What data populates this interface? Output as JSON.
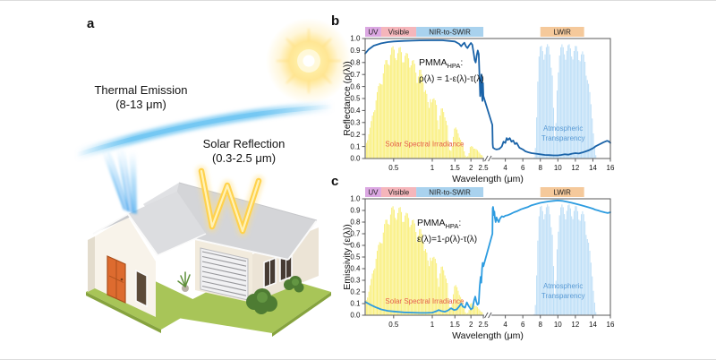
{
  "panel_a": {
    "label": "a",
    "thermal_emission": {
      "line1": "Thermal Emission",
      "line2": "(8-13 μm)"
    },
    "solar_reflection": {
      "line1": "Solar Reflection",
      "line2": "(0.3-2.5 μm)"
    },
    "colors": {
      "beam_blue": "#55b4f0",
      "ray_yellow": "#ffd24d",
      "door_orange": "#dd6b2f",
      "roof_gray": "#d4d5d8",
      "lawn_green": "#a8c558",
      "sky_arc_blue": "#6cc4f2"
    }
  },
  "chart_data": {
    "type": "line",
    "xlabel": "Wavelength (μm)",
    "x_axis": {
      "scale": "broken",
      "left": {
        "range": [
          0.3,
          2.5
        ],
        "scale": "log",
        "ticks": [
          0.5,
          1,
          1.5,
          2,
          2.5
        ]
      },
      "right": {
        "range": [
          2.5,
          16
        ],
        "scale": "linear",
        "ticks": [
          4,
          6,
          8,
          10,
          12,
          14,
          16
        ]
      }
    },
    "y_axis": {
      "range": [
        0,
        1
      ],
      "tick_step": 0.1
    },
    "bands": [
      {
        "label": "UV",
        "range": [
          0.3,
          0.4
        ],
        "color": "#dba7e2"
      },
      {
        "label": "Visible",
        "range": [
          0.4,
          0.75
        ],
        "color": "#f5b6bb"
      },
      {
        "label": "NIR-to-SWIR",
        "range": [
          0.75,
          2.5
        ],
        "color": "#a9d2ee"
      },
      {
        "label": "LWIR",
        "range": [
          8,
          13
        ],
        "color": "#f5c99b"
      }
    ],
    "fills": [
      {
        "name": "solar-spectral-irradiance",
        "label_lines": [
          "Solar Spectral Irradiance"
        ],
        "color": "#f9ef7e",
        "label_color": "#e4604a",
        "label_at": {
          "x": 0.43,
          "y": 0.1
        },
        "anchor": "start",
        "points": [
          [
            0.3,
            0.1
          ],
          [
            0.33,
            0.28
          ],
          [
            0.36,
            0.5
          ],
          [
            0.39,
            0.65
          ],
          [
            0.42,
            0.78
          ],
          [
            0.45,
            0.87
          ],
          [
            0.48,
            0.93
          ],
          [
            0.51,
            0.95
          ],
          [
            0.54,
            0.92
          ],
          [
            0.57,
            0.94
          ],
          [
            0.6,
            0.9
          ],
          [
            0.63,
            0.88
          ],
          [
            0.66,
            0.89
          ],
          [
            0.7,
            0.84
          ],
          [
            0.73,
            0.8
          ],
          [
            0.76,
            0.74
          ],
          [
            0.8,
            0.76
          ],
          [
            0.84,
            0.7
          ],
          [
            0.88,
            0.64
          ],
          [
            0.92,
            0.5
          ],
          [
            0.94,
            0.4
          ],
          [
            0.97,
            0.56
          ],
          [
            1.0,
            0.54
          ],
          [
            1.04,
            0.5
          ],
          [
            1.08,
            0.46
          ],
          [
            1.12,
            0.26
          ],
          [
            1.16,
            0.42
          ],
          [
            1.2,
            0.42
          ],
          [
            1.25,
            0.39
          ],
          [
            1.3,
            0.34
          ],
          [
            1.34,
            0.14
          ],
          [
            1.38,
            0.04
          ],
          [
            1.43,
            0.12
          ],
          [
            1.48,
            0.26
          ],
          [
            1.53,
            0.26
          ],
          [
            1.58,
            0.23
          ],
          [
            1.63,
            0.2
          ],
          [
            1.68,
            0.16
          ],
          [
            1.74,
            0.1
          ],
          [
            1.8,
            0.03
          ],
          [
            1.87,
            0.01
          ],
          [
            1.93,
            0.04
          ],
          [
            1.98,
            0.1
          ],
          [
            2.04,
            0.11
          ],
          [
            2.1,
            0.1
          ],
          [
            2.17,
            0.085
          ],
          [
            2.25,
            0.07
          ],
          [
            2.33,
            0.05
          ],
          [
            2.41,
            0.035
          ],
          [
            2.5,
            0.02
          ]
        ]
      },
      {
        "name": "atmospheric-transparency",
        "label_lines": [
          "Atmospheric",
          "Transparency"
        ],
        "color": "#bedff7",
        "label_color": "#5b9bd5",
        "label_at": {
          "x": 10.6,
          "y": 0.23
        },
        "anchor": "middle",
        "points": [
          [
            7.3,
            0.01
          ],
          [
            7.45,
            0.1
          ],
          [
            7.6,
            0.45
          ],
          [
            7.75,
            0.8
          ],
          [
            7.9,
            0.92
          ],
          [
            8.1,
            0.95
          ],
          [
            8.4,
            0.96
          ],
          [
            8.7,
            0.955
          ],
          [
            9.0,
            0.95
          ],
          [
            9.2,
            0.92
          ],
          [
            9.35,
            0.8
          ],
          [
            9.5,
            0.45
          ],
          [
            9.62,
            0.18
          ],
          [
            9.72,
            0.16
          ],
          [
            9.85,
            0.45
          ],
          [
            10.0,
            0.8
          ],
          [
            10.15,
            0.92
          ],
          [
            10.4,
            0.95
          ],
          [
            10.8,
            0.96
          ],
          [
            11.2,
            0.955
          ],
          [
            11.6,
            0.95
          ],
          [
            12.0,
            0.945
          ],
          [
            12.4,
            0.93
          ],
          [
            12.8,
            0.9
          ],
          [
            13.1,
            0.85
          ],
          [
            13.4,
            0.72
          ],
          [
            13.7,
            0.52
          ],
          [
            14.0,
            0.3
          ],
          [
            14.2,
            0.12
          ],
          [
            14.35,
            0.02
          ]
        ]
      }
    ],
    "panels": [
      {
        "id": "b",
        "label": "b",
        "ylabel": "Reflectance (ρ(λ))",
        "annotation": {
          "name": "PMMA",
          "sub": "HPA",
          "suffix": ":",
          "formula": "ρ(λ) = 1-ε(λ)-τ(λ)"
        },
        "color": "#1a63a8",
        "points": [
          [
            0.3,
            0.875
          ],
          [
            0.32,
            0.91
          ],
          [
            0.35,
            0.94
          ],
          [
            0.4,
            0.96
          ],
          [
            0.45,
            0.97
          ],
          [
            0.5,
            0.975
          ],
          [
            0.6,
            0.98
          ],
          [
            0.7,
            0.982
          ],
          [
            0.8,
            0.984
          ],
          [
            1.0,
            0.985
          ],
          [
            1.2,
            0.985
          ],
          [
            1.35,
            0.98
          ],
          [
            1.5,
            0.975
          ],
          [
            1.62,
            0.955
          ],
          [
            1.68,
            0.935
          ],
          [
            1.72,
            0.95
          ],
          [
            1.78,
            0.965
          ],
          [
            1.83,
            0.935
          ],
          [
            1.88,
            0.92
          ],
          [
            1.93,
            0.94
          ],
          [
            2.0,
            0.963
          ],
          [
            2.05,
            0.948
          ],
          [
            2.1,
            0.88
          ],
          [
            2.14,
            0.82
          ],
          [
            2.18,
            0.8
          ],
          [
            2.22,
            0.86
          ],
          [
            2.26,
            0.9
          ],
          [
            2.3,
            0.87
          ],
          [
            2.33,
            0.7
          ],
          [
            2.36,
            0.52
          ],
          [
            2.39,
            0.63
          ],
          [
            2.42,
            0.7
          ],
          [
            2.44,
            0.52
          ],
          [
            2.46,
            0.48
          ],
          [
            2.48,
            0.63
          ],
          [
            2.5,
            0.52
          ],
          [
            2.52,
            0.28
          ],
          [
            2.56,
            0.12
          ],
          [
            2.6,
            0.09
          ],
          [
            2.8,
            0.08
          ],
          [
            3.0,
            0.075
          ],
          [
            3.3,
            0.08
          ],
          [
            3.6,
            0.1
          ],
          [
            3.8,
            0.14
          ],
          [
            4.0,
            0.13
          ],
          [
            4.15,
            0.17
          ],
          [
            4.3,
            0.155
          ],
          [
            4.5,
            0.17
          ],
          [
            4.7,
            0.14
          ],
          [
            4.9,
            0.15
          ],
          [
            5.1,
            0.12
          ],
          [
            5.3,
            0.13
          ],
          [
            5.6,
            0.09
          ],
          [
            6.0,
            0.075
          ],
          [
            6.3,
            0.06
          ],
          [
            6.7,
            0.05
          ],
          [
            7.0,
            0.045
          ],
          [
            7.5,
            0.04
          ],
          [
            8.0,
            0.035
          ],
          [
            8.5,
            0.03
          ],
          [
            9.0,
            0.028
          ],
          [
            9.5,
            0.026
          ],
          [
            10.0,
            0.026
          ],
          [
            10.4,
            0.03
          ],
          [
            10.8,
            0.035
          ],
          [
            11.2,
            0.032
          ],
          [
            11.6,
            0.04
          ],
          [
            12.0,
            0.045
          ],
          [
            12.4,
            0.042
          ],
          [
            12.8,
            0.05
          ],
          [
            13.2,
            0.06
          ],
          [
            13.6,
            0.07
          ],
          [
            14.0,
            0.085
          ],
          [
            14.4,
            0.105
          ],
          [
            14.8,
            0.12
          ],
          [
            15.2,
            0.135
          ],
          [
            15.6,
            0.147
          ],
          [
            15.8,
            0.143
          ],
          [
            16.0,
            0.13
          ]
        ]
      },
      {
        "id": "c",
        "label": "c",
        "ylabel": "Emissivity (ε(λ))",
        "annotation": {
          "name": "PMMA",
          "sub": "HPA",
          "suffix": ":",
          "formula": "ε(λ)=1-ρ(λ)-τ(λ)"
        },
        "color": "#2d9ce0",
        "points": [
          [
            0.3,
            0.115
          ],
          [
            0.33,
            0.09
          ],
          [
            0.36,
            0.07
          ],
          [
            0.4,
            0.05
          ],
          [
            0.45,
            0.038
          ],
          [
            0.5,
            0.032
          ],
          [
            0.6,
            0.025
          ],
          [
            0.7,
            0.022
          ],
          [
            0.8,
            0.02
          ],
          [
            0.9,
            0.02
          ],
          [
            1.0,
            0.022
          ],
          [
            1.08,
            0.035
          ],
          [
            1.12,
            0.045
          ],
          [
            1.18,
            0.035
          ],
          [
            1.25,
            0.03
          ],
          [
            1.32,
            0.04
          ],
          [
            1.4,
            0.06
          ],
          [
            1.48,
            0.045
          ],
          [
            1.55,
            0.05
          ],
          [
            1.62,
            0.075
          ],
          [
            1.68,
            0.1
          ],
          [
            1.73,
            0.075
          ],
          [
            1.8,
            0.065
          ],
          [
            1.86,
            0.11
          ],
          [
            1.92,
            0.08
          ],
          [
            2.0,
            0.05
          ],
          [
            2.06,
            0.06
          ],
          [
            2.12,
            0.13
          ],
          [
            2.16,
            0.16
          ],
          [
            2.2,
            0.12
          ],
          [
            2.25,
            0.09
          ],
          [
            2.3,
            0.1
          ],
          [
            2.34,
            0.24
          ],
          [
            2.38,
            0.33
          ],
          [
            2.41,
            0.28
          ],
          [
            2.44,
            0.4
          ],
          [
            2.47,
            0.45
          ],
          [
            2.5,
            0.42
          ],
          [
            2.53,
            0.7
          ],
          [
            2.56,
            0.92
          ],
          [
            2.6,
            0.93
          ],
          [
            2.65,
            0.9
          ],
          [
            2.7,
            0.86
          ],
          [
            2.75,
            0.89
          ],
          [
            2.8,
            0.84
          ],
          [
            2.9,
            0.8
          ],
          [
            3.0,
            0.84
          ],
          [
            3.1,
            0.82
          ],
          [
            3.25,
            0.8
          ],
          [
            3.4,
            0.83
          ],
          [
            3.6,
            0.85
          ],
          [
            3.8,
            0.845
          ],
          [
            4.0,
            0.855
          ],
          [
            4.3,
            0.86
          ],
          [
            4.6,
            0.87
          ],
          [
            5.0,
            0.885
          ],
          [
            5.4,
            0.895
          ],
          [
            5.8,
            0.91
          ],
          [
            6.2,
            0.92
          ],
          [
            6.6,
            0.93
          ],
          [
            7.0,
            0.945
          ],
          [
            7.5,
            0.955
          ],
          [
            8.0,
            0.965
          ],
          [
            8.5,
            0.972
          ],
          [
            9.0,
            0.978
          ],
          [
            9.5,
            0.982
          ],
          [
            10.0,
            0.985
          ],
          [
            10.5,
            0.982
          ],
          [
            11.0,
            0.975
          ],
          [
            11.5,
            0.968
          ],
          [
            12.0,
            0.958
          ],
          [
            12.5,
            0.948
          ],
          [
            13.0,
            0.938
          ],
          [
            13.5,
            0.927
          ],
          [
            14.0,
            0.915
          ],
          [
            14.3,
            0.905
          ],
          [
            14.6,
            0.9
          ],
          [
            15.0,
            0.89
          ],
          [
            15.4,
            0.882
          ],
          [
            15.7,
            0.878
          ],
          [
            16.0,
            0.885
          ]
        ]
      }
    ]
  }
}
